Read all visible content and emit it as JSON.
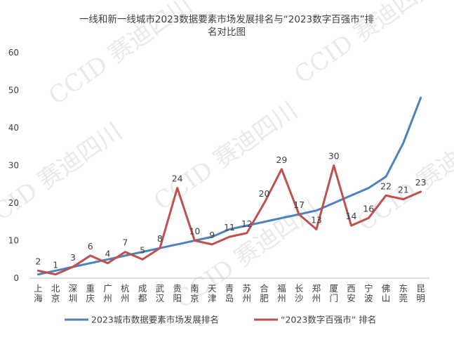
{
  "chart_data": {
    "type": "line",
    "title_lines": [
      "一线和新一线城市2023数据要素市场发展排名与“2023数字百强市”排",
      "名对比图"
    ],
    "categories": [
      "上海",
      "北京",
      "深圳",
      "重庆",
      "广州",
      "杭州",
      "成都",
      "武汉",
      "贵阳",
      "南京",
      "天津",
      "青岛",
      "苏州",
      "合肥",
      "福州",
      "长沙",
      "郑州",
      "厦门",
      "西安",
      "宁波",
      "佛山",
      "东莞",
      "昆明"
    ],
    "series": [
      {
        "name": "2023城市数据要素市场发展排名",
        "color": "#4e81bd",
        "values": [
          1,
          2,
          3,
          4,
          5,
          6,
          7,
          8,
          9,
          10,
          11,
          13,
          14,
          15,
          16,
          17,
          18,
          20,
          22,
          24,
          27,
          36,
          48
        ],
        "show_labels": false
      },
      {
        "name": "“2023数字百强市” 排名",
        "color": "#c0504d",
        "values": [
          2,
          1,
          3,
          6,
          4,
          7,
          5,
          8,
          24,
          10,
          9,
          11,
          12,
          20,
          29,
          17,
          13,
          30,
          14,
          16,
          22,
          21,
          23
        ],
        "show_labels": true
      }
    ],
    "yticks": [
      "0",
      "10",
      "20",
      "30",
      "40",
      "50",
      "60"
    ],
    "ylim": [
      0,
      60
    ],
    "grid": false,
    "legend_position": "bottom"
  },
  "watermark": "CCID 赛迪四川"
}
